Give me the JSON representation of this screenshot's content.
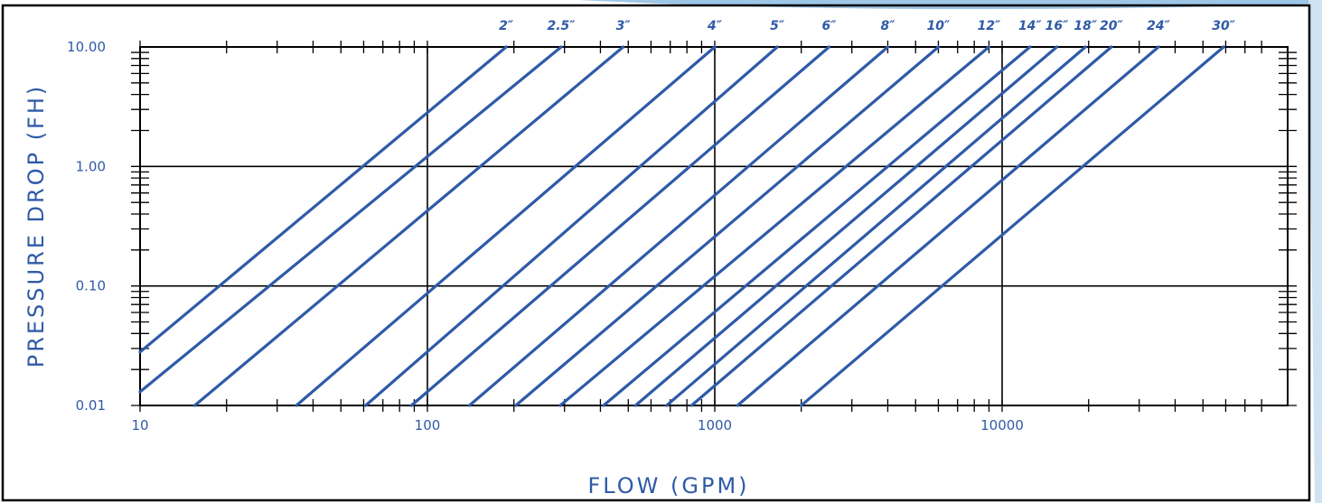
{
  "chart_data": {
    "type": "line",
    "title": "",
    "xlabel": "FLOW (GPM)",
    "ylabel": "PRESSURE DROP (FH)",
    "x_scale": "log",
    "y_scale": "log",
    "xlim": [
      10,
      80000
    ],
    "ylim": [
      0.01,
      10
    ],
    "x_tick_labels": [
      {
        "value": 10,
        "label": "10"
      },
      {
        "value": 100,
        "label": "100"
      },
      {
        "value": 1000,
        "label": "1000"
      },
      {
        "value": 10000,
        "label": "10000"
      }
    ],
    "y_tick_labels": [
      {
        "value": 10,
        "label": "10.00"
      },
      {
        "value": 1,
        "label": "1.00"
      },
      {
        "value": 0.1,
        "label": "0.10"
      },
      {
        "value": 0.01,
        "label": "0.01"
      }
    ],
    "grid": true,
    "series": [
      {
        "name": "2″",
        "x": [
          10,
          188
        ],
        "y": [
          0.028,
          10
        ]
      },
      {
        "name": "2.5″",
        "x": [
          10,
          292
        ],
        "y": [
          0.013,
          10
        ]
      },
      {
        "name": "3″",
        "x": [
          15.5,
          480
        ],
        "y": [
          0.01,
          10
        ]
      },
      {
        "name": "4″",
        "x": [
          35,
          1000
        ],
        "y": [
          0.01,
          10
        ]
      },
      {
        "name": "5″",
        "x": [
          61,
          1650
        ],
        "y": [
          0.01,
          10
        ]
      },
      {
        "name": "6″",
        "x": [
          88,
          2500
        ],
        "y": [
          0.01,
          10
        ]
      },
      {
        "name": "8″",
        "x": [
          140,
          4000
        ],
        "y": [
          0.01,
          10
        ]
      },
      {
        "name": "10″",
        "x": [
          203,
          6000
        ],
        "y": [
          0.01,
          10
        ]
      },
      {
        "name": "12″",
        "x": [
          290,
          9000
        ],
        "y": [
          0.01,
          10
        ]
      },
      {
        "name": "14″",
        "x": [
          410,
          12500
        ],
        "y": [
          0.01,
          10
        ]
      },
      {
        "name": "16″",
        "x": [
          530,
          15500
        ],
        "y": [
          0.01,
          10
        ]
      },
      {
        "name": "18″",
        "x": [
          680,
          19500
        ],
        "y": [
          0.01,
          10
        ]
      },
      {
        "name": "20″",
        "x": [
          830,
          24000
        ],
        "y": [
          0.01,
          10
        ]
      },
      {
        "name": "24″",
        "x": [
          1200,
          35000
        ],
        "y": [
          0.01,
          10
        ]
      },
      {
        "name": "30″",
        "x": [
          2000,
          59000
        ],
        "y": [
          0.01,
          10
        ]
      }
    ],
    "colors": {
      "series": "#2f5aa8",
      "grid": "#000000",
      "text": "#2f5aa8",
      "frame": "#000000"
    }
  }
}
